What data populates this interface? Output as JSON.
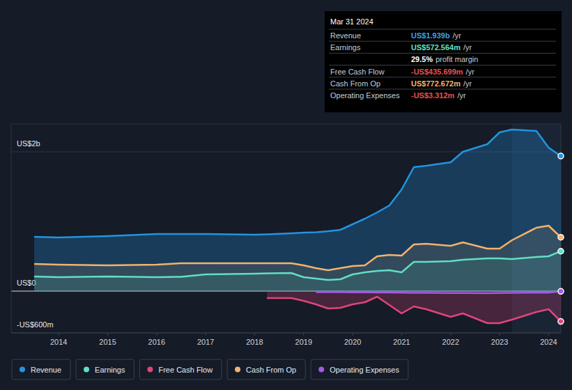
{
  "chart_data": {
    "type": "line",
    "x": [
      2013.5,
      2014,
      2015,
      2016,
      2016.5,
      2017,
      2018,
      2018.25,
      2018.75,
      2019,
      2019.25,
      2019.5,
      2019.75,
      2020,
      2020.25,
      2020.5,
      2020.75,
      2021,
      2021.25,
      2021.5,
      2022,
      2022.25,
      2022.75,
      2023,
      2023.25,
      2023.75,
      2024,
      2024.25
    ],
    "series": [
      {
        "name": "Revenue",
        "color": "#2394df",
        "values": [
          780,
          770,
          790,
          820,
          820,
          820,
          810,
          815,
          830,
          840,
          845,
          860,
          880,
          960,
          1040,
          1130,
          1230,
          1460,
          1780,
          1800,
          1850,
          2000,
          2110,
          2280,
          2320,
          2300,
          2060,
          1939
        ]
      },
      {
        "name": "Earnings",
        "color": "#5fe0c3",
        "values": [
          210,
          200,
          210,
          200,
          205,
          240,
          250,
          255,
          260,
          200,
          180,
          160,
          170,
          240,
          270,
          290,
          300,
          270,
          420,
          420,
          430,
          450,
          470,
          470,
          460,
          490,
          500,
          572.564
        ]
      },
      {
        "name": "Free Cash Flow",
        "color": "#e0457b",
        "values": [
          null,
          null,
          null,
          null,
          null,
          null,
          null,
          -100,
          -100,
          -140,
          -190,
          -250,
          -240,
          -190,
          -160,
          -80,
          -200,
          -320,
          -220,
          -260,
          -370,
          -320,
          -460,
          -460,
          -410,
          -300,
          -260,
          -435.699
        ]
      },
      {
        "name": "Cash From Op",
        "color": "#f2b36b",
        "values": [
          390,
          380,
          370,
          380,
          400,
          400,
          400,
          400,
          400,
          370,
          330,
          300,
          330,
          360,
          370,
          500,
          520,
          510,
          670,
          680,
          650,
          700,
          610,
          610,
          730,
          910,
          940,
          772.672
        ]
      },
      {
        "name": "Operating Expenses",
        "color": "#a855e8",
        "values": [
          null,
          null,
          null,
          null,
          null,
          null,
          null,
          null,
          null,
          null,
          -15,
          -15,
          -15,
          -18,
          -18,
          -20,
          -20,
          -22,
          -25,
          -25,
          -28,
          -28,
          -30,
          -28,
          -25,
          -22,
          -22,
          -3.312
        ]
      }
    ],
    "xlim": [
      2013.03,
      2024.25
    ],
    "xticks": [
      2014,
      2015,
      2016,
      2017,
      2018,
      2019,
      2020,
      2021,
      2022,
      2023,
      2024
    ],
    "ylim": [
      -600,
      2400
    ],
    "yticks": [
      {
        "value": 2000,
        "label": "US$2b"
      },
      {
        "value": 0,
        "label": "US$0"
      },
      {
        "value": -600,
        "label": "-US$600m"
      }
    ],
    "grid": true,
    "legend": "bottom",
    "tooltip": {
      "title": "Mar 31 2024",
      "rows": [
        {
          "label": "Revenue",
          "value": "US$1.939b",
          "unit": "/yr",
          "color": "#3aa0ea"
        },
        {
          "label": "Earnings",
          "value": "US$572.564m",
          "unit": "/yr",
          "color": "#5fe0c3"
        },
        {
          "value": "29.5%",
          "unit": "profit margin",
          "color": "#ffffff"
        },
        {
          "label": "Free Cash Flow",
          "value": "-US$435.699m",
          "unit": "/yr",
          "color": "#e8504f"
        },
        {
          "label": "Cash From Op",
          "value": "US$772.672m",
          "unit": "/yr",
          "color": "#f2b36b"
        },
        {
          "label": "Operating Expenses",
          "value": "-US$3.312m",
          "unit": "/yr",
          "color": "#e8504f"
        }
      ]
    }
  }
}
